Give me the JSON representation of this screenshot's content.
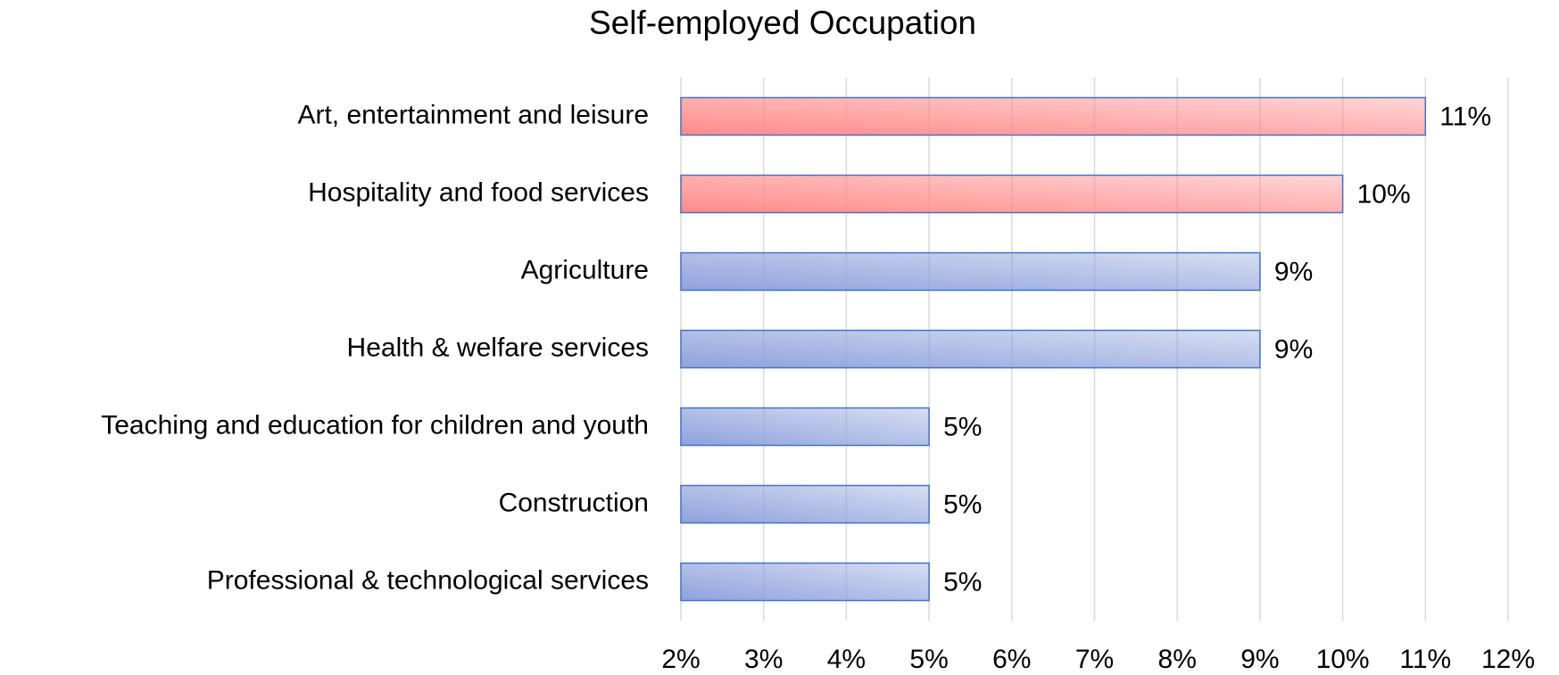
{
  "chart_data": {
    "type": "bar",
    "orientation": "horizontal",
    "title": "Self-employed Occupation",
    "categories": [
      "Art, entertainment and leisure",
      "Hospitality and food services",
      "Agriculture",
      "Health & welfare services",
      "Teaching and education for children and youth",
      "Construction",
      "Professional & technological services"
    ],
    "values": [
      11,
      10,
      9,
      9,
      5,
      5,
      5
    ],
    "value_labels": [
      "11%",
      "10%",
      "9%",
      "9%",
      "5%",
      "5%",
      "5%"
    ],
    "colors": [
      "#ff8a8a",
      "#ff8a8a",
      "#8ea2dc",
      "#8ea2dc",
      "#8ea2dc",
      "#8ea2dc",
      "#8ea2dc"
    ],
    "xlim": [
      2,
      12
    ],
    "xticks": [
      {
        "value": 2,
        "label": "2%"
      },
      {
        "value": 3,
        "label": "3%"
      },
      {
        "value": 4,
        "label": "4%"
      },
      {
        "value": 5,
        "label": "5%"
      },
      {
        "value": 6,
        "label": "6%"
      },
      {
        "value": 7,
        "label": "7%"
      },
      {
        "value": 8,
        "label": "8%"
      },
      {
        "value": 9,
        "label": "9%"
      },
      {
        "value": 10,
        "label": "10%"
      },
      {
        "value": 11,
        "label": "11%"
      },
      {
        "value": 12,
        "label": "12%"
      }
    ],
    "grid": true
  }
}
